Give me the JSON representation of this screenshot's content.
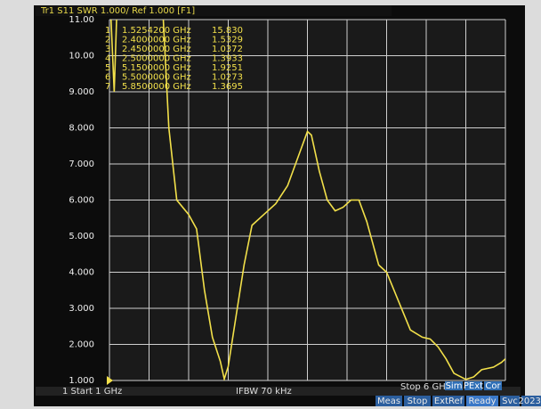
{
  "chart_data": {
    "type": "line",
    "header": "Tr1 S11 SWR 1.000/ Ref 1.000 [F1]",
    "x": [
      1.0,
      1.06,
      1.12,
      1.525,
      1.68,
      1.75,
      1.85,
      2.0,
      2.1,
      2.2,
      2.3,
      2.4,
      2.45,
      2.5,
      2.6,
      2.7,
      2.8,
      2.95,
      3.1,
      3.25,
      3.4,
      3.5,
      3.55,
      3.65,
      3.75,
      3.85,
      3.95,
      4.05,
      4.15,
      4.25,
      4.4,
      4.5,
      4.65,
      4.8,
      4.95,
      5.05,
      5.15,
      5.25,
      5.35,
      5.5,
      5.6,
      5.7,
      5.85,
      5.95,
      6.0
    ],
    "series": [
      {
        "name": "S11 SWR",
        "color": "#f2e04a",
        "values": [
          12,
          9.0,
          13,
          15.83,
          11,
          8,
          6.0,
          5.6,
          5.2,
          3.5,
          2.2,
          1.53,
          1.04,
          1.39,
          2.8,
          4.2,
          5.3,
          5.6,
          5.9,
          6.4,
          7.3,
          7.9,
          7.8,
          6.8,
          6.0,
          5.7,
          5.8,
          6.0,
          6.0,
          5.4,
          4.2,
          4.0,
          3.2,
          2.4,
          2.2,
          2.15,
          1.93,
          1.6,
          1.2,
          1.03,
          1.1,
          1.3,
          1.37,
          1.5,
          1.6
        ]
      }
    ],
    "xlim": [
      1,
      6
    ],
    "ylim": [
      1,
      11
    ],
    "yticks": [
      {
        "value": 11,
        "label": "11.00"
      },
      {
        "value": 10,
        "label": "10.00"
      },
      {
        "value": 9,
        "label": "9.000"
      },
      {
        "value": 8,
        "label": "8.000"
      },
      {
        "value": 7,
        "label": "7.000"
      },
      {
        "value": 6,
        "label": "6.000"
      },
      {
        "value": 5,
        "label": "5.000"
      },
      {
        "value": 4,
        "label": "4.000"
      },
      {
        "value": 3,
        "label": "3.000"
      },
      {
        "value": 2,
        "label": "2.000"
      },
      {
        "value": 1,
        "label": "1.000"
      }
    ],
    "grid": true,
    "markers": [
      [
        "1",
        "1.5254200 GHz",
        "15.830"
      ],
      [
        "2",
        "2.4000000 GHz",
        "1.5329"
      ],
      [
        "3",
        "2.4500000 GHz",
        "1.0372"
      ],
      [
        "4",
        "2.5000000 GHz",
        "1.3933"
      ],
      [
        "5",
        "5.1500000 GHz",
        "1.9251"
      ],
      [
        "6",
        "5.5000000 GHz",
        "1.0273"
      ],
      [
        "7",
        "5.8500000 GHz",
        "1.3695"
      ]
    ],
    "footer": {
      "start": "1 Start 1 GHz",
      "ifbw": "IFBW 70 kHz",
      "stop": "Stop 6 GHz",
      "flags": [
        "Sim",
        "PExt",
        "Cor"
      ]
    },
    "status": [
      "Meas",
      "Stop",
      "ExtRef",
      "Ready",
      "Svc",
      "2023-"
    ]
  }
}
